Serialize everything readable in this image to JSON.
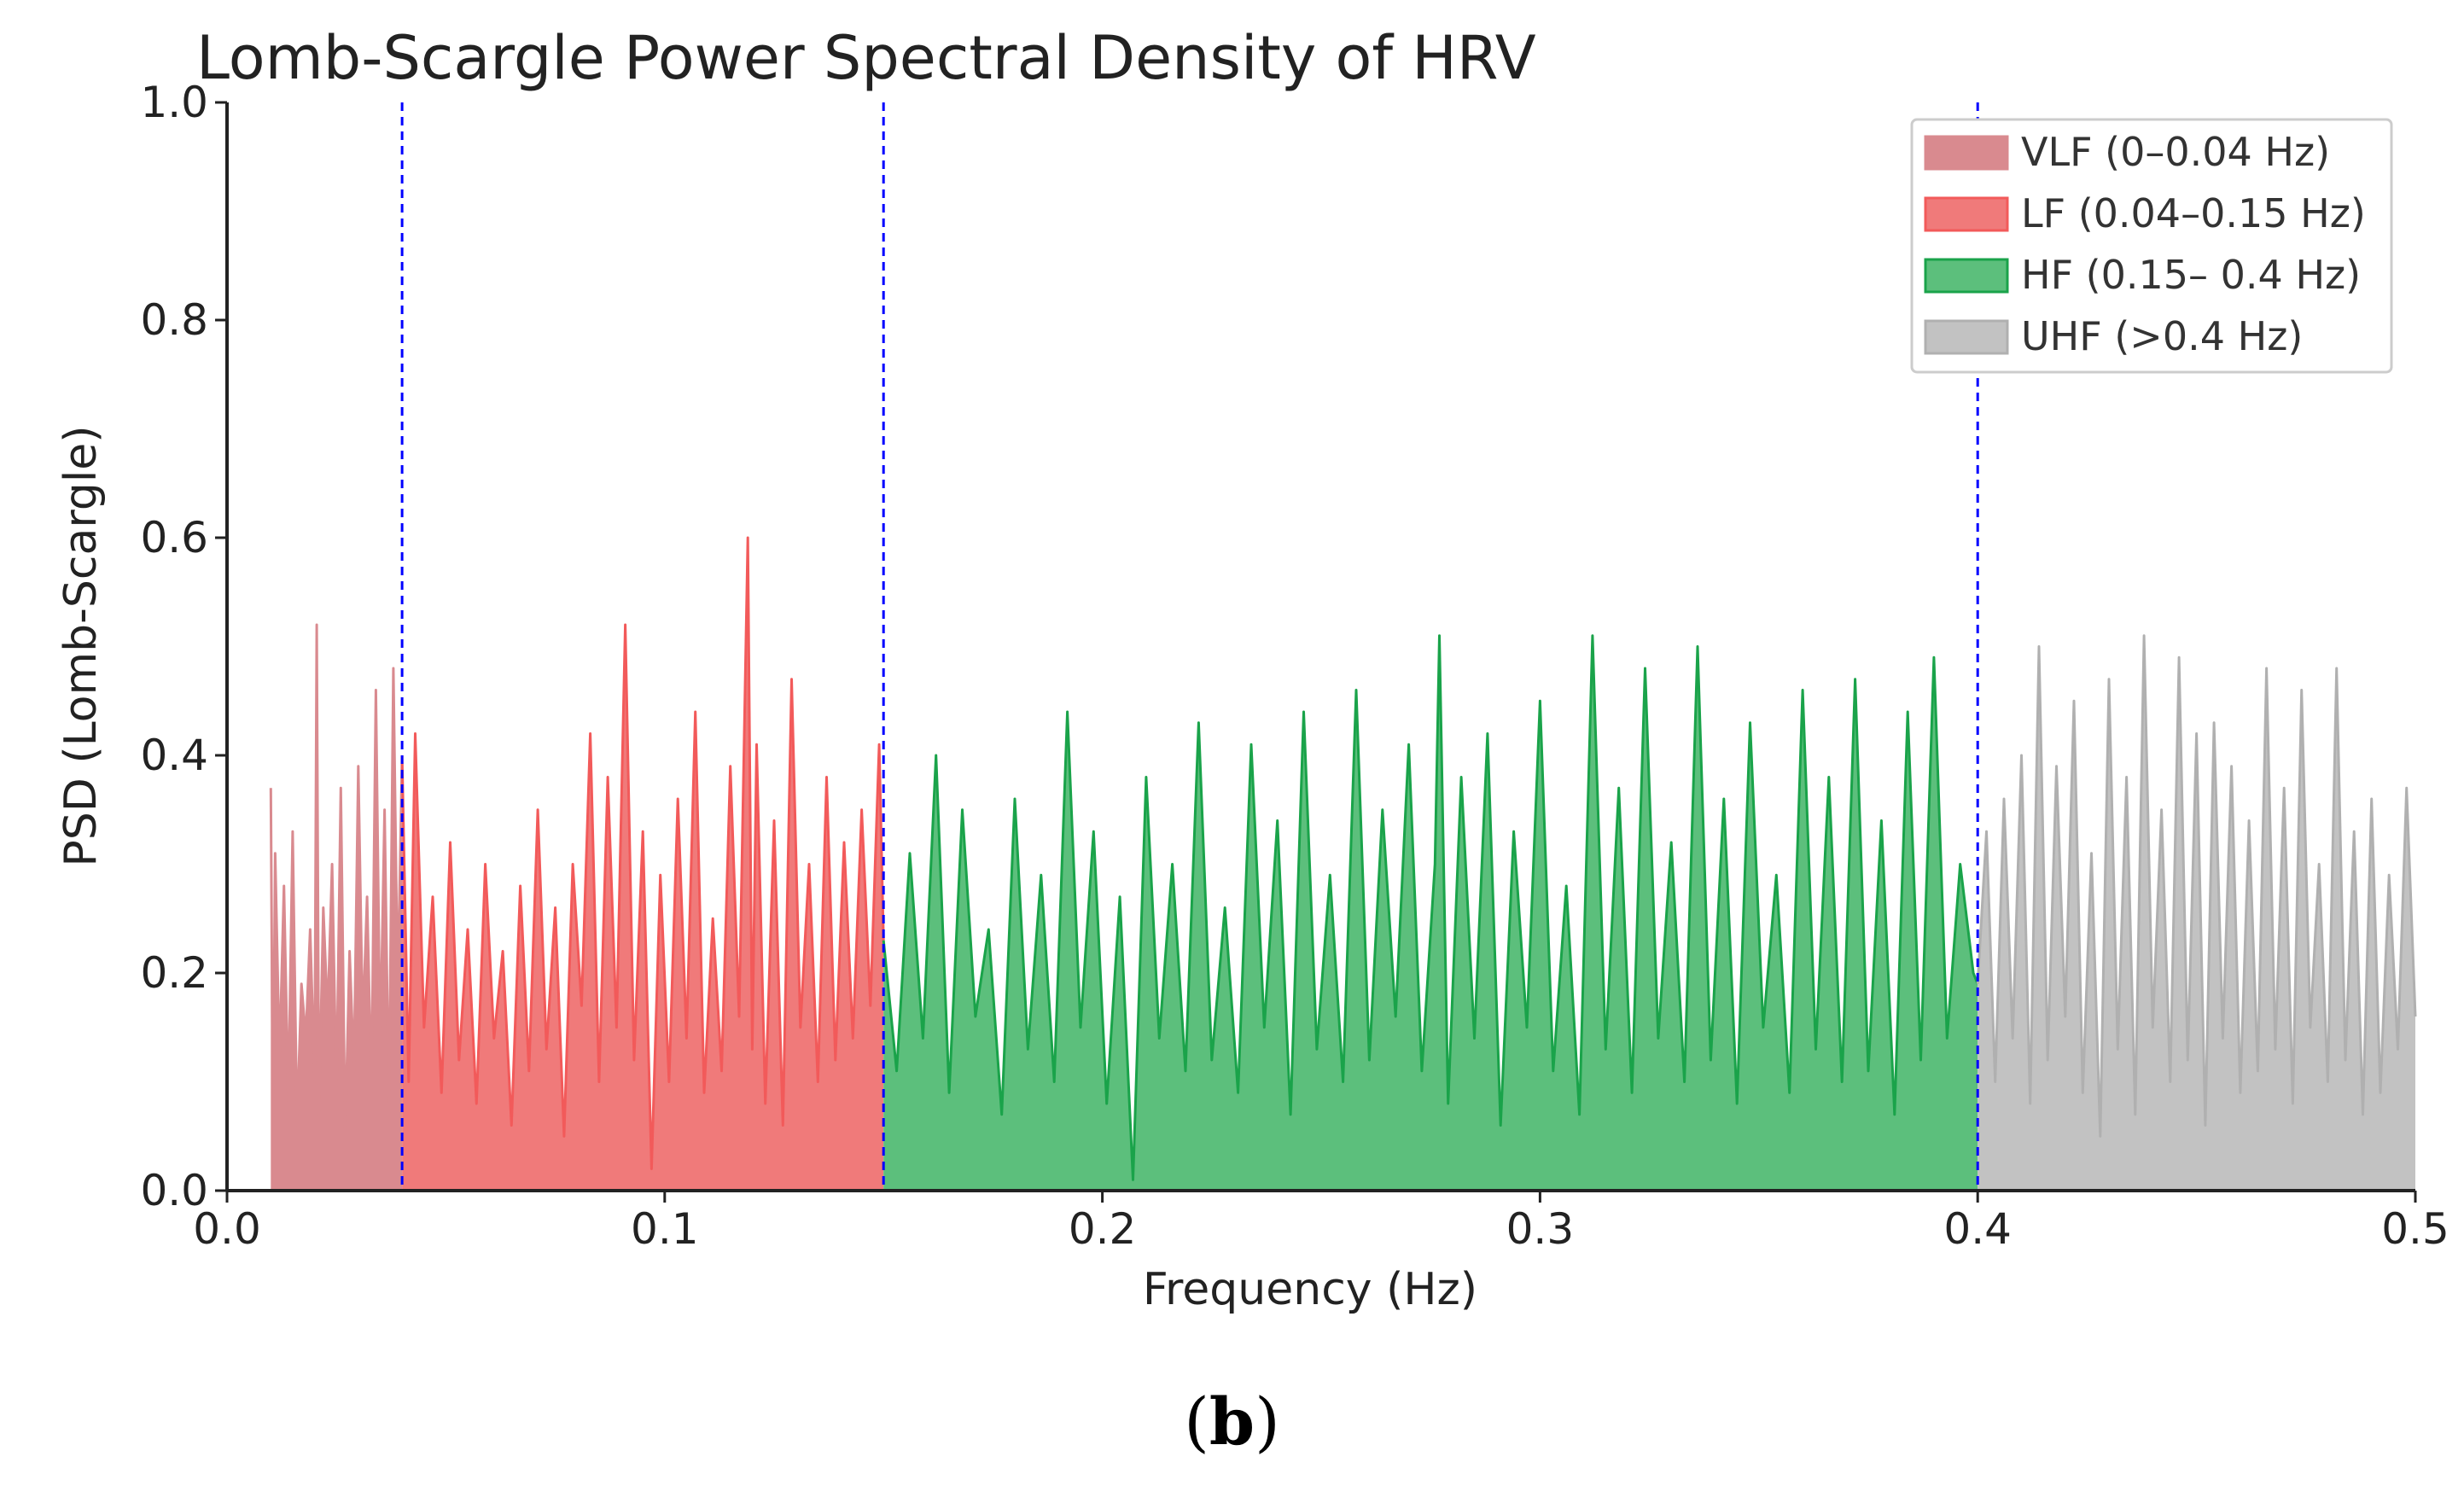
{
  "figure": {
    "panel_label_open": "(",
    "panel_label_letter": "b",
    "panel_label_close": ")"
  },
  "chart_data": {
    "type": "area",
    "title": "Lomb-Scargle Power Spectral Density of HRV",
    "xlabel": "Frequency (Hz)",
    "ylabel": "PSD (Lomb-Scargle)",
    "xlim": [
      0.0,
      0.5
    ],
    "ylim": [
      0.0,
      1.0
    ],
    "xticks": [
      0.0,
      0.1,
      0.2,
      0.3,
      0.4,
      0.5
    ],
    "xtick_labels": [
      "0.0",
      "0.1",
      "0.2",
      "0.3",
      "0.4",
      "0.5"
    ],
    "yticks": [
      0.0,
      0.2,
      0.4,
      0.6,
      0.8,
      1.0
    ],
    "ytick_labels": [
      "0.0",
      "0.2",
      "0.4",
      "0.6",
      "0.8",
      "1.0"
    ],
    "grid": false,
    "legend_position": "top-right",
    "band_boundaries": [
      0.04,
      0.15,
      0.4
    ],
    "boundary_color": "#0000ff",
    "bands": [
      {
        "name": "VLF (0–0.04 Hz)",
        "range": [
          0.01,
          0.04
        ],
        "fill_color": "#d98a8f",
        "line_color": "#d98a8f",
        "x": [
          0.01,
          0.0105,
          0.011,
          0.012,
          0.013,
          0.014,
          0.015,
          0.016,
          0.017,
          0.018,
          0.019,
          0.02,
          0.0205,
          0.021,
          0.022,
          0.023,
          0.024,
          0.025,
          0.026,
          0.027,
          0.028,
          0.029,
          0.03,
          0.031,
          0.032,
          0.033,
          0.034,
          0.035,
          0.036,
          0.037,
          0.038,
          0.039,
          0.04
        ],
        "y": [
          0.37,
          0.05,
          0.31,
          0.12,
          0.28,
          0.08,
          0.33,
          0.06,
          0.19,
          0.14,
          0.24,
          0.1,
          0.52,
          0.07,
          0.26,
          0.16,
          0.3,
          0.09,
          0.37,
          0.05,
          0.22,
          0.11,
          0.39,
          0.15,
          0.27,
          0.09,
          0.46,
          0.13,
          0.35,
          0.07,
          0.48,
          0.18,
          0.4
        ]
      },
      {
        "name": "LF (0.04–0.15 Hz)",
        "range": [
          0.04,
          0.15
        ],
        "fill_color": "#f07a7a",
        "line_color": "#f25a5a",
        "x": [
          0.04,
          0.0415,
          0.043,
          0.045,
          0.047,
          0.049,
          0.051,
          0.053,
          0.055,
          0.057,
          0.059,
          0.061,
          0.063,
          0.065,
          0.067,
          0.069,
          0.071,
          0.073,
          0.075,
          0.077,
          0.079,
          0.081,
          0.083,
          0.085,
          0.087,
          0.089,
          0.091,
          0.093,
          0.095,
          0.097,
          0.099,
          0.101,
          0.103,
          0.105,
          0.107,
          0.109,
          0.111,
          0.113,
          0.115,
          0.117,
          0.119,
          0.12,
          0.121,
          0.123,
          0.125,
          0.127,
          0.129,
          0.131,
          0.133,
          0.135,
          0.137,
          0.139,
          0.141,
          0.143,
          0.145,
          0.147,
          0.149,
          0.15
        ],
        "y": [
          0.4,
          0.1,
          0.42,
          0.15,
          0.27,
          0.09,
          0.32,
          0.12,
          0.24,
          0.08,
          0.3,
          0.14,
          0.22,
          0.06,
          0.28,
          0.11,
          0.35,
          0.13,
          0.26,
          0.05,
          0.3,
          0.17,
          0.42,
          0.1,
          0.38,
          0.15,
          0.52,
          0.12,
          0.33,
          0.02,
          0.29,
          0.1,
          0.36,
          0.14,
          0.44,
          0.09,
          0.25,
          0.11,
          0.39,
          0.16,
          0.6,
          0.13,
          0.41,
          0.08,
          0.34,
          0.06,
          0.47,
          0.15,
          0.3,
          0.1,
          0.38,
          0.12,
          0.32,
          0.14,
          0.35,
          0.17,
          0.41,
          0.23
        ]
      },
      {
        "name": "HF (0.15– 0.4 Hz)",
        "range": [
          0.15,
          0.4
        ],
        "fill_color": "#5cbf7c",
        "line_color": "#1aa34a",
        "x": [
          0.15,
          0.153,
          0.156,
          0.159,
          0.162,
          0.165,
          0.168,
          0.171,
          0.174,
          0.177,
          0.18,
          0.183,
          0.186,
          0.189,
          0.192,
          0.195,
          0.198,
          0.201,
          0.204,
          0.207,
          0.21,
          0.213,
          0.216,
          0.219,
          0.222,
          0.225,
          0.228,
          0.231,
          0.234,
          0.237,
          0.24,
          0.243,
          0.246,
          0.249,
          0.252,
          0.255,
          0.258,
          0.261,
          0.264,
          0.267,
          0.27,
          0.273,
          0.276,
          0.277,
          0.279,
          0.282,
          0.285,
          0.288,
          0.291,
          0.294,
          0.297,
          0.3,
          0.303,
          0.306,
          0.309,
          0.312,
          0.315,
          0.318,
          0.321,
          0.324,
          0.327,
          0.33,
          0.333,
          0.336,
          0.339,
          0.342,
          0.345,
          0.348,
          0.351,
          0.354,
          0.357,
          0.36,
          0.363,
          0.366,
          0.369,
          0.372,
          0.375,
          0.378,
          0.381,
          0.384,
          0.387,
          0.39,
          0.393,
          0.396,
          0.399,
          0.4
        ],
        "y": [
          0.23,
          0.11,
          0.31,
          0.14,
          0.4,
          0.09,
          0.35,
          0.16,
          0.24,
          0.07,
          0.36,
          0.13,
          0.29,
          0.1,
          0.44,
          0.15,
          0.33,
          0.08,
          0.27,
          0.01,
          0.38,
          0.14,
          0.3,
          0.11,
          0.43,
          0.12,
          0.26,
          0.09,
          0.41,
          0.15,
          0.34,
          0.07,
          0.44,
          0.13,
          0.29,
          0.1,
          0.46,
          0.12,
          0.35,
          0.16,
          0.41,
          0.11,
          0.3,
          0.51,
          0.08,
          0.38,
          0.14,
          0.42,
          0.06,
          0.33,
          0.15,
          0.45,
          0.11,
          0.28,
          0.07,
          0.51,
          0.13,
          0.37,
          0.09,
          0.48,
          0.14,
          0.32,
          0.1,
          0.5,
          0.12,
          0.36,
          0.08,
          0.43,
          0.15,
          0.29,
          0.09,
          0.46,
          0.13,
          0.38,
          0.1,
          0.47,
          0.11,
          0.34,
          0.07,
          0.44,
          0.12,
          0.49,
          0.14,
          0.3,
          0.2,
          0.19
        ]
      },
      {
        "name": "UHF (>0.4 Hz)",
        "range": [
          0.4,
          0.5
        ],
        "fill_color": "#c2c2c2",
        "line_color": "#b0b0b0",
        "x": [
          0.4,
          0.402,
          0.404,
          0.406,
          0.408,
          0.41,
          0.412,
          0.414,
          0.416,
          0.418,
          0.42,
          0.422,
          0.424,
          0.426,
          0.428,
          0.43,
          0.432,
          0.434,
          0.436,
          0.438,
          0.44,
          0.442,
          0.444,
          0.446,
          0.448,
          0.45,
          0.452,
          0.454,
          0.456,
          0.458,
          0.46,
          0.462,
          0.464,
          0.466,
          0.468,
          0.47,
          0.472,
          0.474,
          0.476,
          0.478,
          0.48,
          0.482,
          0.484,
          0.486,
          0.488,
          0.49,
          0.492,
          0.494,
          0.496,
          0.498,
          0.5
        ],
        "y": [
          0.19,
          0.33,
          0.1,
          0.36,
          0.14,
          0.4,
          0.08,
          0.5,
          0.12,
          0.39,
          0.16,
          0.45,
          0.09,
          0.31,
          0.05,
          0.47,
          0.13,
          0.38,
          0.07,
          0.51,
          0.15,
          0.35,
          0.1,
          0.49,
          0.12,
          0.42,
          0.06,
          0.43,
          0.14,
          0.39,
          0.09,
          0.34,
          0.11,
          0.48,
          0.13,
          0.37,
          0.08,
          0.46,
          0.15,
          0.3,
          0.1,
          0.48,
          0.12,
          0.33,
          0.07,
          0.36,
          0.09,
          0.29,
          0.13,
          0.37,
          0.16
        ]
      }
    ]
  }
}
